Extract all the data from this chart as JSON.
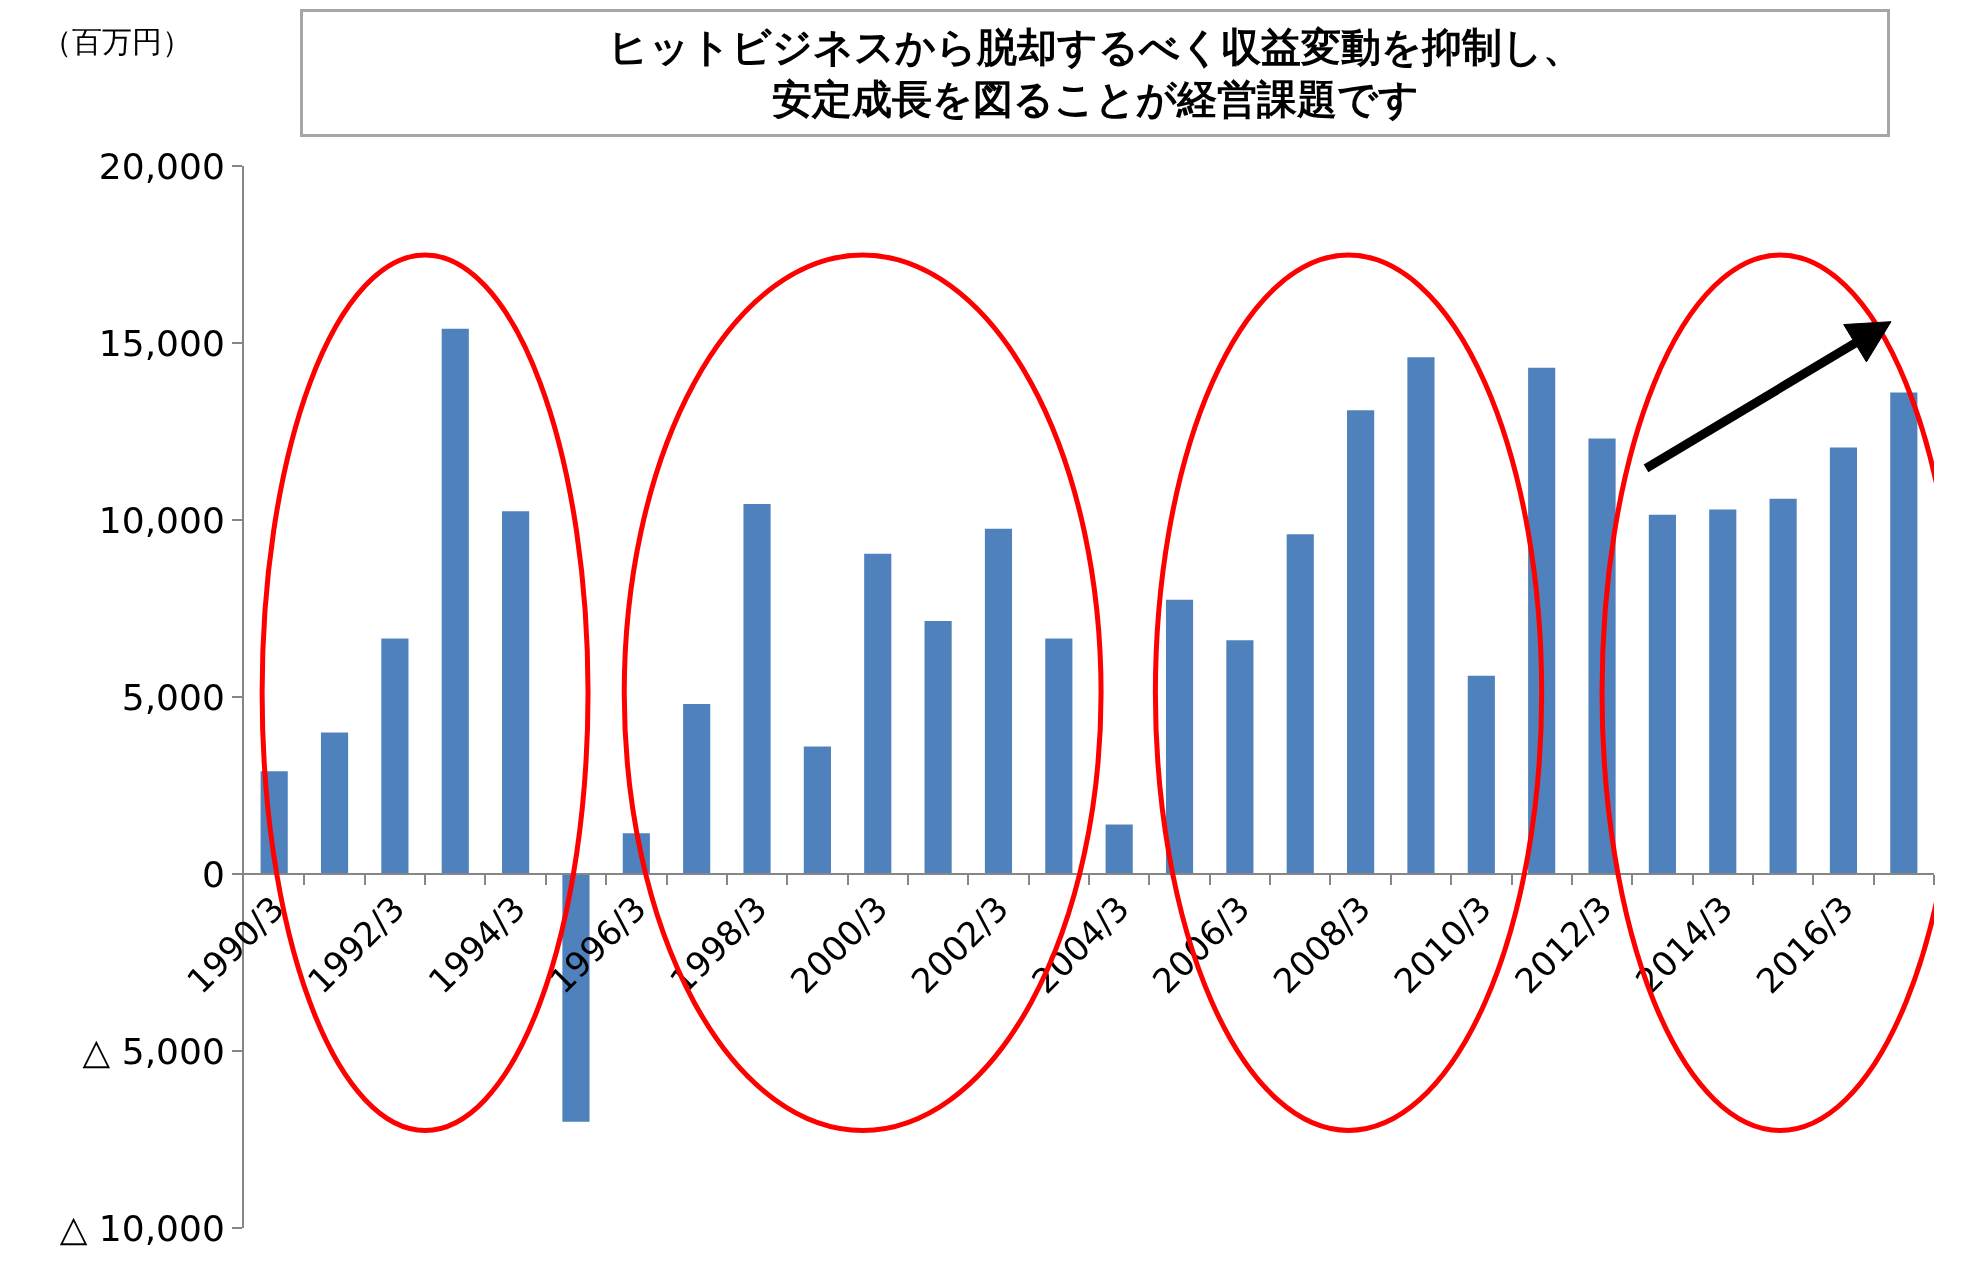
{
  "chart_data": {
    "type": "bar",
    "title": "ヒットビジネスから脱却するべく収益変動を抑制し、安定成長を図ることが経営課題です",
    "ylabel": "（百万円）",
    "categories": [
      "1990/3",
      null,
      "1992/3",
      null,
      "1994/3",
      null,
      "1996/3",
      null,
      "1998/3",
      null,
      "2000/3",
      null,
      "2002/3",
      null,
      "2004/3",
      null,
      "2006/3",
      null,
      "2008/3",
      null,
      "2010/3",
      null,
      "2012/3",
      null,
      "2014/3",
      null,
      "2016/3",
      null
    ],
    "values": [
      2900,
      4000,
      6650,
      15400,
      10250,
      -7000,
      1150,
      4800,
      10450,
      3600,
      9050,
      7150,
      9750,
      6650,
      1400,
      7750,
      6600,
      9600,
      13100,
      14600,
      5600,
      14300,
      12300,
      10150,
      10300,
      10600,
      12050,
      13600
    ],
    "color": "#4f81bd",
    "ylim": [
      -10000,
      20000
    ],
    "yticks": [
      {
        "value": -10000,
        "label": "△ 10,000"
      },
      {
        "value": -5000,
        "label": "△ 5,000"
      },
      0,
      {
        "value": 5000,
        "label": "5,000"
      },
      {
        "value": 10000,
        "label": "10,000"
      },
      {
        "value": 15000,
        "label": "15,000"
      },
      {
        "value": 20000,
        "label": "20,000"
      }
    ]
  }
}
